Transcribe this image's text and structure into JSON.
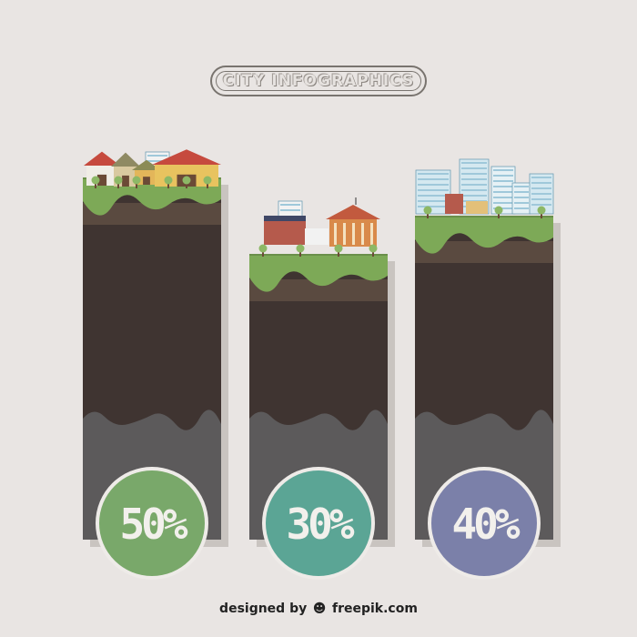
{
  "title": "CITY INFOGRAPHICS",
  "footer": {
    "designed_by": "designed by",
    "brand": "freepik.com",
    "logo_icon": "freepik-logo-icon"
  },
  "colors": {
    "background": "#e9e5e3",
    "grass": "#7da957",
    "grass_dark": "#6a8f4a",
    "soil_top": "#5a4a40",
    "soil": "#3f3431",
    "rock": "#5c5a5b",
    "shadow": "#c9c4c0"
  },
  "chart_data": {
    "type": "bar",
    "categories": [
      "village",
      "town",
      "city"
    ],
    "values": [
      50,
      30,
      40
    ],
    "value_labels": [
      "50%",
      "30%",
      "40%"
    ],
    "colors": [
      "#79a86a",
      "#5ba595",
      "#7b80a9"
    ],
    "title": "CITY INFOGRAPHICS",
    "xlabel": "",
    "ylabel": "",
    "ylim": [
      0,
      100
    ],
    "grid": false
  }
}
